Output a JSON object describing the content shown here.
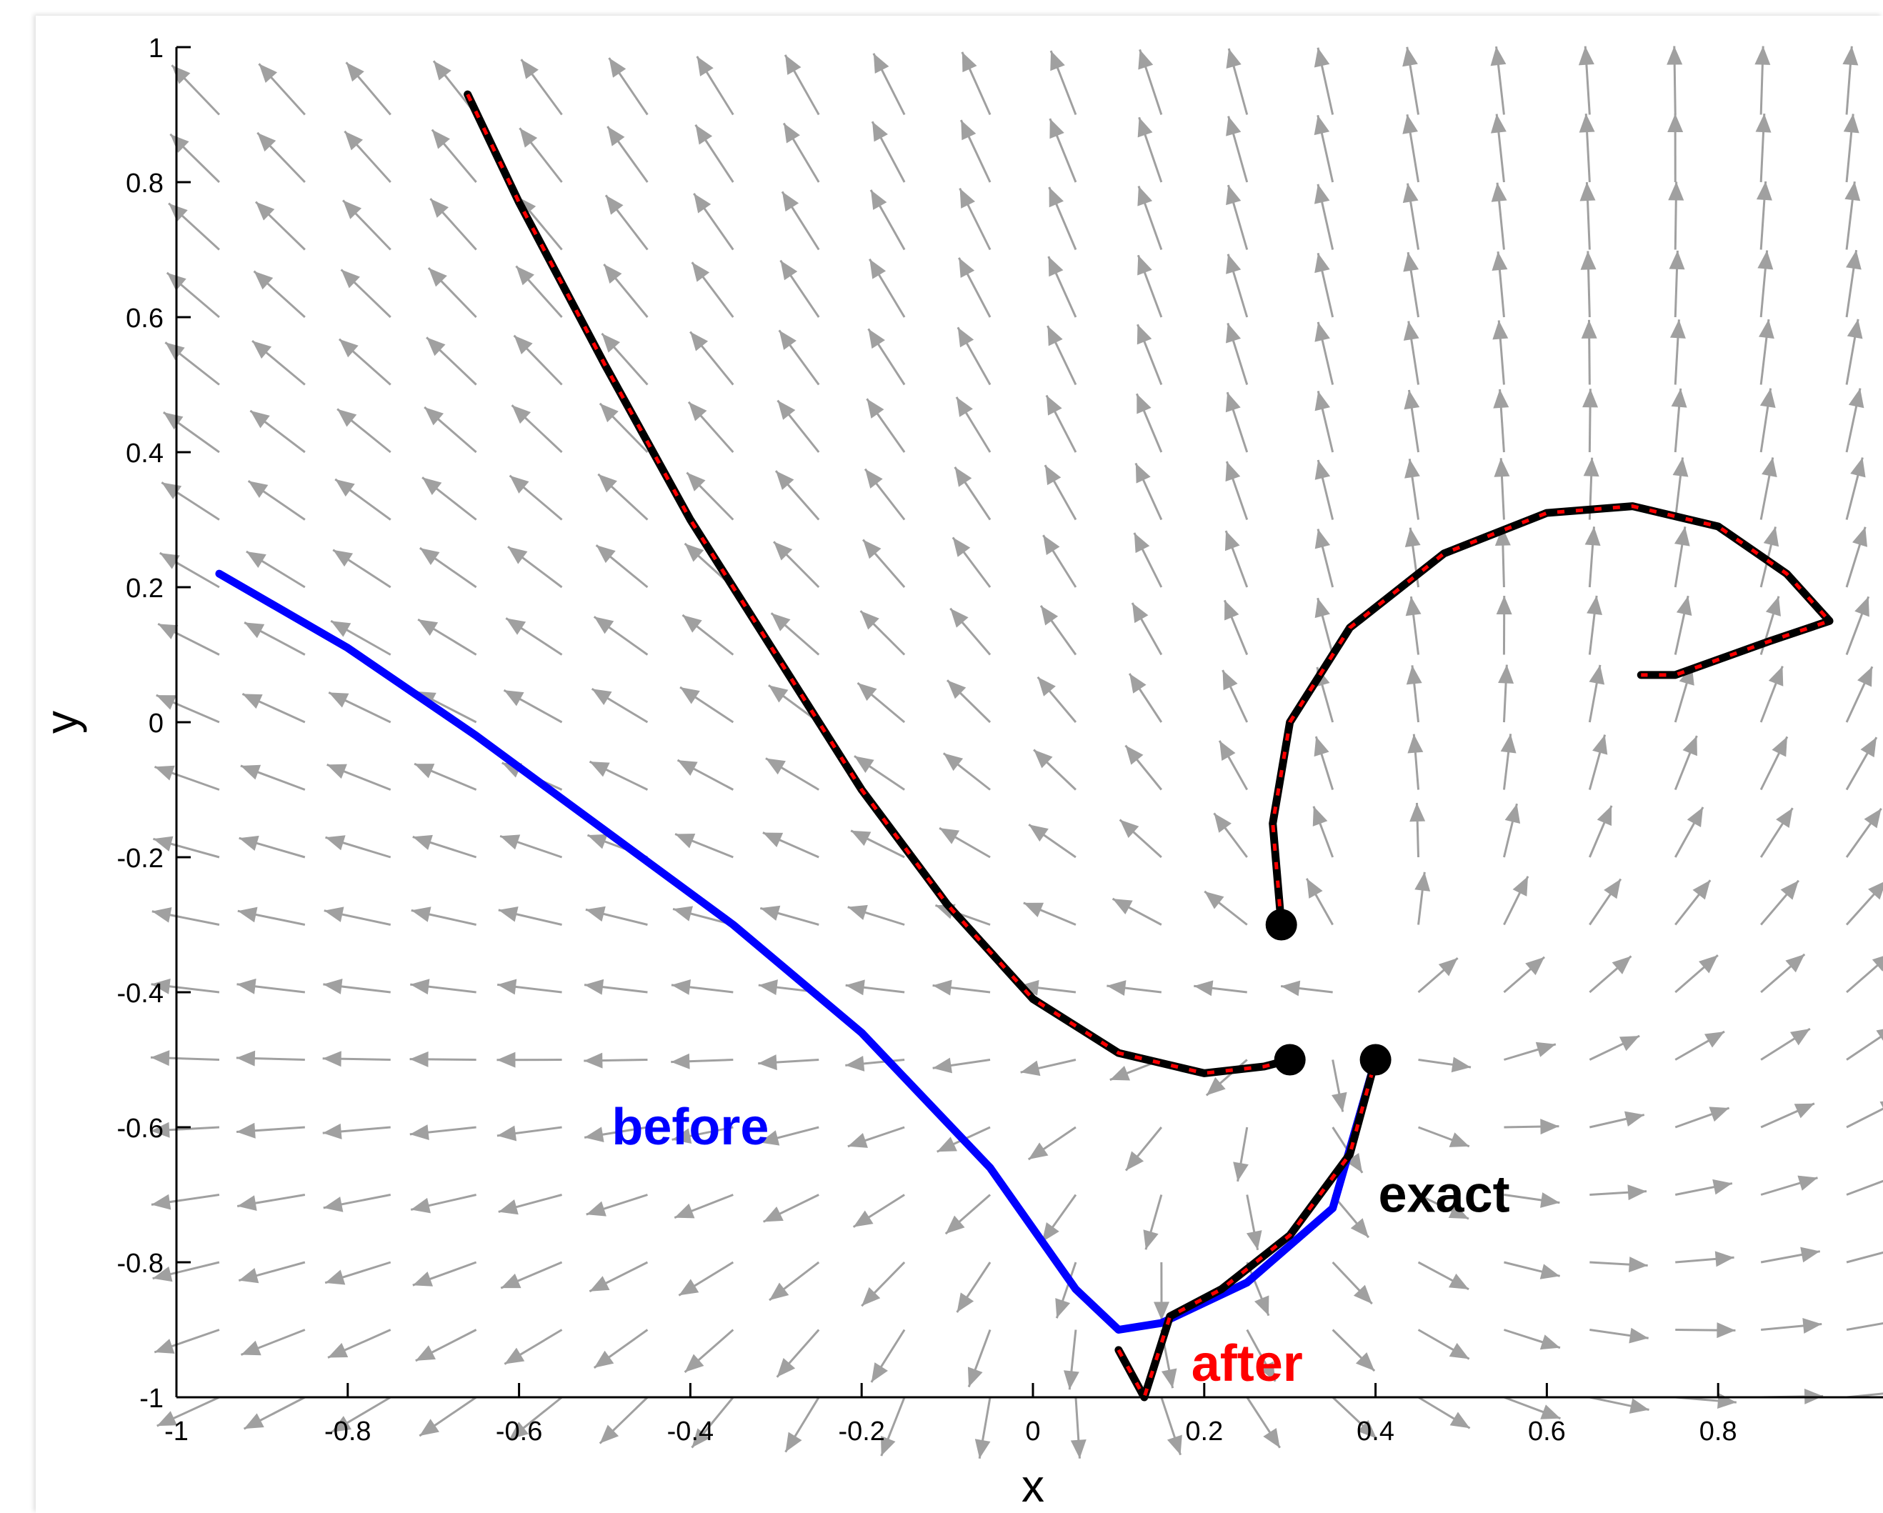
{
  "chart_data": {
    "type": "line",
    "subtype": "vector-field-with-trajectories",
    "title": "",
    "xlabel": "x",
    "ylabel": "y",
    "xlim": [
      -1,
      1
    ],
    "ylim": [
      -1,
      1
    ],
    "x_ticks": [
      "-1",
      "-0.8",
      "-0.6",
      "-0.4",
      "-0.2",
      "0",
      "0.2",
      "0.4",
      "0.6",
      "0.8",
      "1"
    ],
    "y_ticks": [
      "-1",
      "-0.8",
      "-0.6",
      "-0.4",
      "-0.2",
      "0",
      "0.2",
      "0.4",
      "0.6",
      "0.8",
      "1"
    ],
    "grid": false,
    "quiver": {
      "color": "#a0a0a0",
      "grid_x": [
        -0.95,
        -0.85,
        -0.75,
        -0.65,
        -0.55,
        -0.45,
        -0.35,
        -0.25,
        -0.15,
        -0.05,
        0.05,
        0.15,
        0.25,
        0.35,
        0.45,
        0.55,
        0.65,
        0.75,
        0.85,
        0.95
      ],
      "grid_y": [
        0.9,
        0.8,
        0.7,
        0.6,
        0.5,
        0.4,
        0.3,
        0.2,
        0.1,
        0.0,
        -0.1,
        -0.2,
        -0.3,
        -0.4,
        -0.5,
        -0.6,
        -0.7,
        -0.8,
        -0.9,
        -1.0
      ],
      "center": [
        0.4,
        -0.4
      ]
    },
    "annotations": [
      {
        "text": "before",
        "x": -0.4,
        "y": -0.6,
        "color": "#0000ff"
      },
      {
        "text": "exact",
        "x": 0.48,
        "y": -0.7,
        "color": "#000000"
      },
      {
        "text": "after",
        "x": 0.25,
        "y": -0.95,
        "color": "#ff0000"
      }
    ],
    "series": [
      {
        "color": "#0000ff",
        "x": [
          -0.95,
          -0.8,
          -0.65,
          -0.5,
          -0.35,
          -0.2,
          -0.05,
          0.05,
          0.1,
          0.15,
          0.25,
          0.35,
          0.4
        ],
        "y": [
          0.22,
          0.11,
          -0.02,
          -0.16,
          -0.3,
          -0.46,
          -0.66,
          -0.84,
          -0.9,
          -0.89,
          -0.83,
          -0.72,
          -0.5
        ]
      },
      {
        "color": "#000000",
        "x": [
          -0.66,
          -0.6,
          -0.5,
          -0.4,
          -0.3,
          -0.2,
          -0.1,
          0.0,
          0.1,
          0.2,
          0.27,
          0.3
        ],
        "y": [
          0.93,
          0.77,
          0.53,
          0.3,
          0.1,
          -0.1,
          -0.27,
          -0.41,
          -0.49,
          -0.52,
          -0.51,
          -0.5
        ]
      },
      {
        "color": "#000000",
        "x": [
          0.1,
          0.13,
          0.16,
          0.22,
          0.3,
          0.37,
          0.4
        ],
        "y": [
          -0.93,
          -1.0,
          -0.88,
          -0.84,
          -0.76,
          -0.64,
          -0.5
        ]
      },
      {
        "color": "#000000",
        "x": [
          0.29,
          0.28,
          0.3,
          0.37,
          0.48,
          0.6,
          0.7,
          0.8,
          0.88,
          0.93,
          0.86,
          0.75,
          0.71
        ],
        "y": [
          -0.3,
          -0.15,
          0.0,
          0.14,
          0.25,
          0.31,
          0.32,
          0.29,
          0.22,
          0.15,
          0.12,
          0.07,
          0.07
        ]
      }
    ],
    "endpoints": [
      {
        "x": 0.29,
        "y": -0.3
      },
      {
        "x": 0.3,
        "y": -0.5
      },
      {
        "x": 0.4,
        "y": -0.5
      }
    ]
  }
}
